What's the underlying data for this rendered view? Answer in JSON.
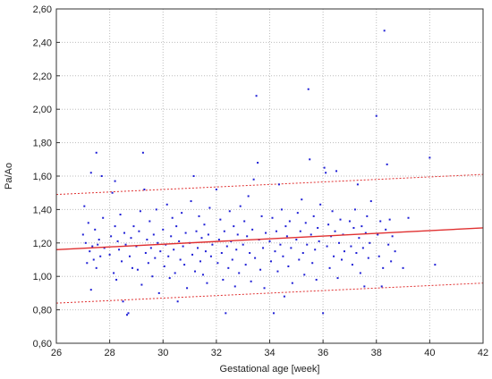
{
  "chart_data": {
    "type": "scatter",
    "xlabel": "Gestational age [week]",
    "ylabel": "Pa/Ao",
    "xlim": [
      26,
      42
    ],
    "ylim": [
      0.6,
      2.6
    ],
    "x_ticks": [
      26,
      28,
      30,
      32,
      34,
      36,
      38,
      40,
      42
    ],
    "y_ticks": [
      0.6,
      0.8,
      1.0,
      1.2,
      1.4,
      1.6,
      1.8,
      2.0,
      2.2,
      2.4,
      2.6
    ],
    "x_tick_labels": [
      "26",
      "28",
      "30",
      "32",
      "34",
      "36",
      "38",
      "40",
      "42"
    ],
    "y_tick_labels": [
      "0,60",
      "0,80",
      "1,00",
      "1,20",
      "1,40",
      "1,60",
      "1,80",
      "2,00",
      "2,20",
      "2,40",
      "2,60"
    ],
    "grid": true,
    "point_color": "#1f1fd6",
    "regression_color": "#e03030",
    "regression_line": {
      "x": [
        26,
        42
      ],
      "y": [
        1.16,
        1.29
      ]
    },
    "prediction_band_upper": {
      "x": [
        26,
        42
      ],
      "y": [
        1.49,
        1.61
      ]
    },
    "prediction_band_lower": {
      "x": [
        26,
        42
      ],
      "y": [
        0.84,
        0.96
      ]
    },
    "points": [
      [
        27.0,
        1.25
      ],
      [
        27.05,
        1.42
      ],
      [
        27.1,
        1.2
      ],
      [
        27.15,
        1.08
      ],
      [
        27.2,
        1.32
      ],
      [
        27.25,
        1.15
      ],
      [
        27.3,
        0.92
      ],
      [
        27.3,
        1.62
      ],
      [
        27.35,
        1.18
      ],
      [
        27.4,
        1.1
      ],
      [
        27.45,
        1.28
      ],
      [
        27.5,
        1.74
      ],
      [
        27.5,
        1.05
      ],
      [
        27.55,
        1.19
      ],
      [
        27.6,
        1.22
      ],
      [
        27.65,
        1.12
      ],
      [
        27.7,
        1.6
      ],
      [
        27.75,
        1.35
      ],
      [
        27.8,
        1.17
      ],
      [
        28.0,
        1.13
      ],
      [
        28.05,
        1.24
      ],
      [
        28.1,
        1.5
      ],
      [
        28.15,
        1.02
      ],
      [
        28.2,
        1.3
      ],
      [
        28.2,
        1.57
      ],
      [
        28.25,
        0.98
      ],
      [
        28.3,
        1.21
      ],
      [
        28.35,
        1.16
      ],
      [
        28.4,
        1.37
      ],
      [
        28.45,
        1.09
      ],
      [
        28.5,
        0.85
      ],
      [
        28.55,
        1.26
      ],
      [
        28.6,
        1.19
      ],
      [
        28.65,
        0.77
      ],
      [
        28.7,
        0.78
      ],
      [
        28.75,
        1.12
      ],
      [
        28.8,
        1.23
      ],
      [
        28.85,
        1.05
      ],
      [
        28.9,
        1.3
      ],
      [
        29.0,
        1.18
      ],
      [
        29.05,
        1.04
      ],
      [
        29.1,
        1.27
      ],
      [
        29.15,
        1.39
      ],
      [
        29.2,
        0.95
      ],
      [
        29.25,
        1.74
      ],
      [
        29.3,
        1.52
      ],
      [
        29.35,
        1.14
      ],
      [
        29.4,
        1.22
      ],
      [
        29.45,
        1.08
      ],
      [
        29.5,
        1.33
      ],
      [
        29.55,
        1.17
      ],
      [
        29.6,
        1.0
      ],
      [
        29.65,
        1.25
      ],
      [
        29.7,
        1.11
      ],
      [
        29.75,
        1.4
      ],
      [
        29.8,
        1.2
      ],
      [
        29.85,
        0.9
      ],
      [
        29.9,
        1.15
      ],
      [
        30.0,
        1.28
      ],
      [
        30.05,
        1.06
      ],
      [
        30.1,
        1.19
      ],
      [
        30.15,
        1.43
      ],
      [
        30.2,
        1.12
      ],
      [
        30.25,
        0.99
      ],
      [
        30.3,
        1.24
      ],
      [
        30.35,
        1.35
      ],
      [
        30.4,
        1.16
      ],
      [
        30.45,
        1.02
      ],
      [
        30.5,
        1.3
      ],
      [
        30.55,
        0.85
      ],
      [
        30.6,
        1.21
      ],
      [
        30.65,
        1.1
      ],
      [
        30.7,
        1.38
      ],
      [
        30.75,
        1.18
      ],
      [
        30.8,
        1.07
      ],
      [
        30.85,
        1.26
      ],
      [
        30.9,
        0.93
      ],
      [
        31.0,
        1.2
      ],
      [
        31.05,
        1.45
      ],
      [
        31.1,
        1.13
      ],
      [
        31.15,
        1.6
      ],
      [
        31.2,
        1.03
      ],
      [
        31.25,
        1.27
      ],
      [
        31.3,
        1.17
      ],
      [
        31.35,
        1.36
      ],
      [
        31.4,
        1.09
      ],
      [
        31.45,
        1.23
      ],
      [
        31.5,
        1.01
      ],
      [
        31.55,
        1.31
      ],
      [
        31.6,
        1.15
      ],
      [
        31.65,
        0.96
      ],
      [
        31.7,
        1.25
      ],
      [
        31.75,
        1.41
      ],
      [
        31.8,
        1.12
      ],
      [
        31.85,
        1.19
      ],
      [
        32.0,
        1.52
      ],
      [
        32.05,
        1.08
      ],
      [
        32.1,
        1.22
      ],
      [
        32.15,
        1.34
      ],
      [
        32.2,
        1.14
      ],
      [
        32.25,
        0.98
      ],
      [
        32.3,
        1.27
      ],
      [
        32.35,
        0.78
      ],
      [
        32.4,
        1.18
      ],
      [
        32.45,
        1.05
      ],
      [
        32.5,
        1.39
      ],
      [
        32.55,
        1.21
      ],
      [
        32.6,
        1.1
      ],
      [
        32.65,
        1.3
      ],
      [
        32.7,
        0.94
      ],
      [
        32.75,
        1.16
      ],
      [
        32.8,
        1.25
      ],
      [
        32.85,
        1.02
      ],
      [
        32.9,
        1.42
      ],
      [
        33.0,
        1.19
      ],
      [
        33.05,
        1.33
      ],
      [
        33.1,
        1.07
      ],
      [
        33.15,
        1.24
      ],
      [
        33.2,
        1.48
      ],
      [
        33.25,
        1.14
      ],
      [
        33.3,
        0.97
      ],
      [
        33.35,
        1.28
      ],
      [
        33.4,
        1.58
      ],
      [
        33.45,
        1.11
      ],
      [
        33.5,
        2.08
      ],
      [
        33.55,
        1.68
      ],
      [
        33.6,
        1.22
      ],
      [
        33.65,
        1.04
      ],
      [
        33.7,
        1.36
      ],
      [
        33.75,
        1.17
      ],
      [
        33.8,
        0.93
      ],
      [
        33.85,
        1.26
      ],
      [
        34.0,
        1.21
      ],
      [
        34.05,
        1.09
      ],
      [
        34.1,
        1.35
      ],
      [
        34.15,
        0.78
      ],
      [
        34.2,
        1.15
      ],
      [
        34.25,
        1.27
      ],
      [
        34.3,
        1.03
      ],
      [
        34.35,
        1.55
      ],
      [
        34.4,
        1.19
      ],
      [
        34.45,
        1.4
      ],
      [
        34.5,
        1.12
      ],
      [
        34.55,
        0.88
      ],
      [
        34.6,
        1.3
      ],
      [
        34.65,
        1.24
      ],
      [
        34.7,
        1.06
      ],
      [
        34.75,
        1.33
      ],
      [
        34.8,
        1.17
      ],
      [
        34.85,
        0.96
      ],
      [
        35.0,
        1.22
      ],
      [
        35.05,
        1.38
      ],
      [
        35.1,
        1.1
      ],
      [
        35.15,
        1.27
      ],
      [
        35.2,
        1.46
      ],
      [
        35.25,
        1.14
      ],
      [
        35.3,
        1.01
      ],
      [
        35.35,
        1.32
      ],
      [
        35.4,
        1.19
      ],
      [
        35.45,
        2.12
      ],
      [
        35.5,
        1.7
      ],
      [
        35.55,
        1.25
      ],
      [
        35.6,
        1.08
      ],
      [
        35.65,
        1.36
      ],
      [
        35.7,
        1.16
      ],
      [
        35.75,
        0.98
      ],
      [
        35.8,
        1.29
      ],
      [
        35.85,
        1.21
      ],
      [
        35.9,
        1.43
      ],
      [
        36.0,
        0.78
      ],
      [
        36.05,
        1.65
      ],
      [
        36.1,
        1.62
      ],
      [
        36.15,
        1.18
      ],
      [
        36.2,
        1.31
      ],
      [
        36.25,
        1.05
      ],
      [
        36.3,
        1.24
      ],
      [
        36.35,
        1.39
      ],
      [
        36.4,
        1.12
      ],
      [
        36.45,
        1.27
      ],
      [
        36.5,
        1.63
      ],
      [
        36.55,
        0.99
      ],
      [
        36.6,
        1.2
      ],
      [
        36.65,
        1.34
      ],
      [
        36.7,
        1.1
      ],
      [
        36.75,
        1.25
      ],
      [
        36.8,
        1.15
      ],
      [
        37.0,
        1.33
      ],
      [
        37.05,
        1.18
      ],
      [
        37.1,
        1.07
      ],
      [
        37.15,
        1.29
      ],
      [
        37.2,
        1.4
      ],
      [
        37.25,
        1.14
      ],
      [
        37.3,
        1.55
      ],
      [
        37.35,
        1.23
      ],
      [
        37.4,
        1.02
      ],
      [
        37.45,
        1.3
      ],
      [
        37.5,
        1.17
      ],
      [
        37.55,
        0.94
      ],
      [
        37.6,
        1.26
      ],
      [
        37.65,
        1.36
      ],
      [
        37.7,
        1.11
      ],
      [
        37.75,
        1.2
      ],
      [
        37.8,
        1.45
      ],
      [
        38.0,
        1.96
      ],
      [
        38.05,
        1.25
      ],
      [
        38.1,
        1.12
      ],
      [
        38.15,
        1.33
      ],
      [
        38.2,
        0.94
      ],
      [
        38.25,
        1.05
      ],
      [
        38.3,
        2.47
      ],
      [
        38.35,
        1.28
      ],
      [
        38.4,
        1.67
      ],
      [
        38.45,
        1.19
      ],
      [
        38.5,
        1.34
      ],
      [
        38.55,
        1.09
      ],
      [
        38.6,
        1.24
      ],
      [
        38.7,
        1.15
      ],
      [
        39.0,
        1.05
      ],
      [
        39.2,
        1.35
      ],
      [
        40.0,
        1.71
      ],
      [
        40.2,
        1.07
      ]
    ]
  }
}
